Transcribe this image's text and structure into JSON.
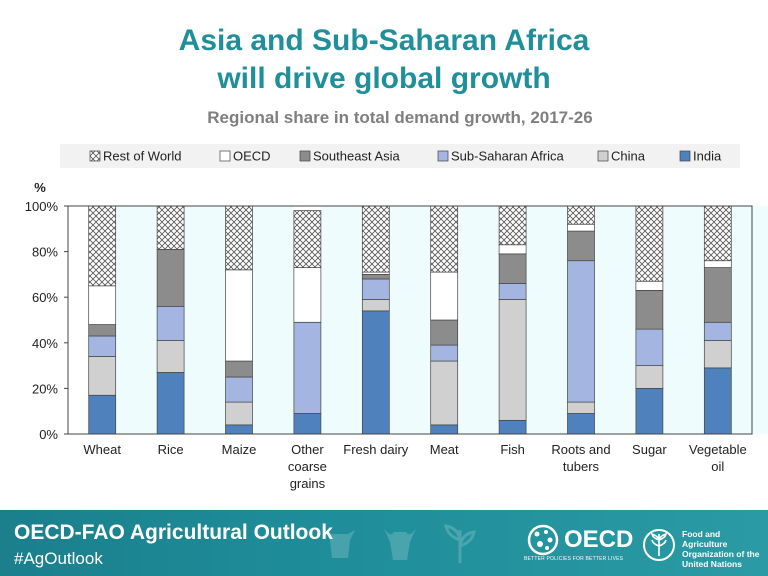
{
  "header": {
    "title_line1": "Asia and Sub-Saharan Africa",
    "title_line2": "will drive global growth",
    "subtitle": "Regional share in total demand growth, 2017-26"
  },
  "footer": {
    "title": "OECD-FAO Agricultural Outlook",
    "hashtag": "#AgOutlook",
    "oecd_logo_text": "OECD",
    "oecd_tagline": "BETTER POLICIES FOR BETTER LIVES",
    "fao_text": [
      "Food and Agriculture",
      "Organization of the",
      "United Nations"
    ]
  },
  "chart_data": {
    "type": "bar",
    "stacked": true,
    "unit_label": "%",
    "ylim": [
      0,
      100
    ],
    "yticks": [
      0,
      20,
      40,
      60,
      80,
      100
    ],
    "ytick_labels": [
      "0%",
      "20%",
      "40%",
      "60%",
      "80%",
      "100%"
    ],
    "legend_position": "top",
    "categories": [
      [
        "Wheat"
      ],
      [
        "Rice"
      ],
      [
        "Maize"
      ],
      [
        "Other",
        "coarse",
        "grains"
      ],
      [
        "Fresh dairy"
      ],
      [
        "Meat"
      ],
      [
        "Fish"
      ],
      [
        "Roots and",
        "tubers"
      ],
      [
        "Sugar"
      ],
      [
        "Vegetable",
        "oil"
      ]
    ],
    "legend_order": [
      "Rest of World",
      "OECD",
      "Southeast Asia",
      "Sub-Saharan Africa",
      "China",
      "India"
    ],
    "series": [
      {
        "name": "India",
        "color": "#4f81bd",
        "pattern": "solid",
        "values": [
          17,
          27,
          4,
          9,
          54,
          4,
          6,
          9,
          20,
          29
        ]
      },
      {
        "name": "China",
        "color": "#d0d0d0",
        "pattern": "solid",
        "values": [
          17,
          14,
          10,
          0,
          5,
          28,
          53,
          5,
          10,
          12
        ]
      },
      {
        "name": "Sub-Saharan Africa",
        "color": "#a3b5e0",
        "pattern": "solid",
        "values": [
          9,
          15,
          11,
          40,
          9,
          7,
          7,
          62,
          16,
          8
        ]
      },
      {
        "name": "Southeast Asia",
        "color": "#8c8c8c",
        "pattern": "solid",
        "values": [
          5,
          25,
          7,
          0,
          2,
          11,
          13,
          13,
          17,
          24
        ]
      },
      {
        "name": "OECD",
        "color": "#ffffff",
        "pattern": "solid",
        "values": [
          17,
          0,
          40,
          24,
          1,
          21,
          4,
          3,
          4,
          3
        ]
      },
      {
        "name": "Rest of World",
        "color": "#ffffff",
        "pattern": "crosshatch",
        "values": [
          35,
          19,
          28,
          25,
          29,
          29,
          17,
          8,
          33,
          24
        ]
      }
    ]
  }
}
